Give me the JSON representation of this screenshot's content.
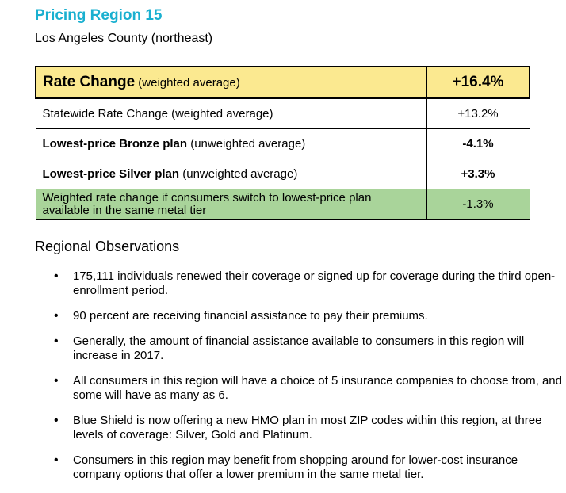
{
  "header": {
    "title": "Pricing Region 15",
    "subtitle": "Los Angeles County (northeast)"
  },
  "rates_table": {
    "rows": [
      {
        "strong": "Rate Change",
        "rest": " (weighted average)",
        "value": "+16.4%"
      },
      {
        "strong": "",
        "rest": "Statewide Rate Change (weighted average)",
        "value": "+13.2%"
      },
      {
        "strong": "Lowest-price Bronze plan",
        "rest": " (unweighted average)",
        "value": "-4.1%"
      },
      {
        "strong": "Lowest-price Silver plan",
        "rest": " (unweighted average)",
        "value": "+3.3%"
      },
      {
        "strong": "",
        "rest": "Weighted rate change if consumers switch to lowest-price plan available in the same metal tier",
        "value": "-1.3%"
      }
    ]
  },
  "observations": {
    "heading": "Regional Observations",
    "items": [
      "175,111 individuals renewed their coverage or signed up for coverage during the third open-enrollment period.",
      "90 percent are receiving financial assistance to pay their premiums.",
      "Generally, the amount of financial assistance available to consumers in this region will increase in 2017.",
      "All consumers in this region will have a choice of 5 insurance companies to choose from, and some will have as many as 6.",
      "Blue Shield is now offering a new HMO plan in most ZIP codes within this region, at three levels of coverage: Silver, Gold and Platinum.",
      "Consumers in this region may benefit from shopping around for lower-cost insurance company options that offer a lower premium in the same metal tier."
    ]
  },
  "colors": {
    "title": "#1ab0d0",
    "highlight_yellow": "#fbe990",
    "highlight_green": "#a9d49a"
  }
}
